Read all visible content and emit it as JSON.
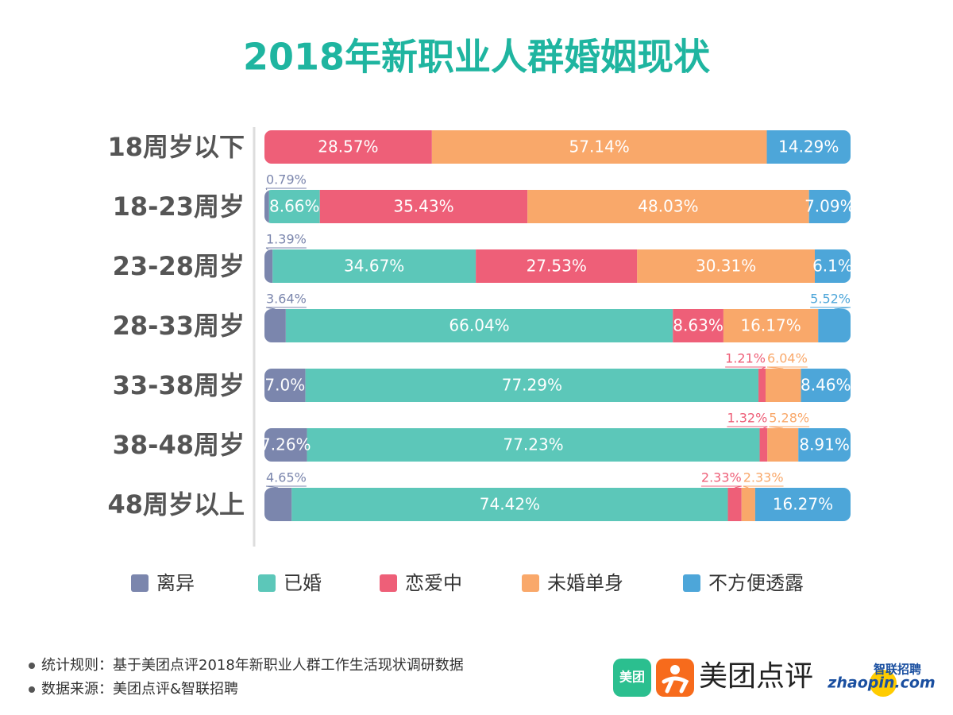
{
  "chart_data": {
    "type": "stacked_bar_horizontal",
    "title": "2018年新职业人群婚姻现状",
    "categories": [
      "18周岁以下",
      "18-23周岁",
      "23-28周岁",
      "28-33周岁",
      "33-38周岁",
      "38-48周岁",
      "48周岁以上"
    ],
    "series": [
      {
        "name": "离异",
        "color": "#7b86ad",
        "values": [
          null,
          0.79,
          1.39,
          3.64,
          7.0,
          7.26,
          4.65
        ],
        "value_labels": [
          null,
          "0.79%",
          "1.39%",
          "3.64%",
          "7.0%",
          "7.26%",
          "4.65%"
        ]
      },
      {
        "name": "已婚",
        "color": "#5cc7b9",
        "values": [
          null,
          8.66,
          34.67,
          66.04,
          77.29,
          77.23,
          74.42
        ],
        "value_labels": [
          null,
          "8.66%",
          "34.67%",
          "66.04%",
          "77.29%",
          "77.23%",
          "74.42%"
        ]
      },
      {
        "name": "恋爱中",
        "color": "#ee5f78",
        "values": [
          28.57,
          35.43,
          27.53,
          8.63,
          1.21,
          1.32,
          2.33
        ],
        "value_labels": [
          "28.57%",
          "35.43%",
          "27.53%",
          "8.63%",
          "1.21%",
          "1.32%",
          "2.33%"
        ]
      },
      {
        "name": "未婚单身",
        "color": "#f9a86a",
        "values": [
          57.14,
          48.03,
          30.31,
          16.17,
          6.04,
          5.28,
          2.33
        ],
        "value_labels": [
          "57.14%",
          "48.03%",
          "30.31%",
          "16.17%",
          "6.04%",
          "5.28%",
          "2.33%"
        ]
      },
      {
        "name": "不方便透露",
        "color": "#4da6d9",
        "values": [
          14.29,
          7.09,
          6.1,
          5.52,
          8.46,
          8.91,
          16.27
        ],
        "value_labels": [
          "14.29%",
          "7.09%",
          "6.1%",
          "5.52%",
          "8.46%",
          "8.91%",
          "16.27%"
        ]
      }
    ]
  },
  "footnotes": [
    "统计规则：基于美团点评2018年新职业人群工作生活现状调研数据",
    "数据来源：美团点评&智联招聘"
  ],
  "logos": {
    "meituan": "美团",
    "dianping": "美团点评",
    "zhilian": "智联招聘",
    "zhaopin": "zhaopin.com"
  }
}
